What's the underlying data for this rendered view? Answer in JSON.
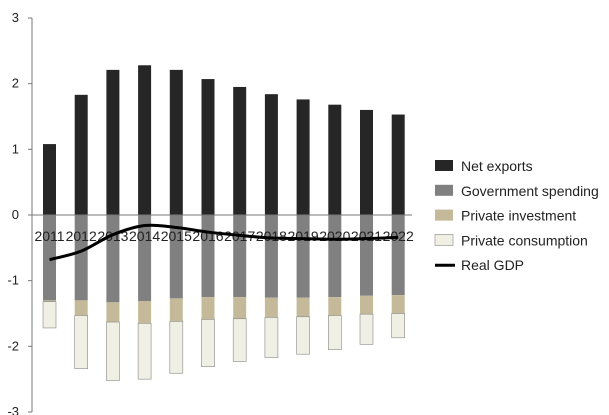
{
  "chart_data": {
    "type": "bar",
    "stacked": true,
    "categories": [
      "2011",
      "2012",
      "2013",
      "2014",
      "2015",
      "2016",
      "2017",
      "2018",
      "2019",
      "2020",
      "2021",
      "2022"
    ],
    "ylim": [
      -3,
      3
    ],
    "yticks": [
      -3,
      -2,
      -1,
      0,
      1,
      2,
      3
    ],
    "grid": false,
    "legend_position": "right",
    "series": [
      {
        "name": "Net exports",
        "kind": "bar",
        "color": "#262626",
        "values": [
          1.08,
          1.83,
          2.21,
          2.28,
          2.21,
          2.07,
          1.95,
          1.84,
          1.76,
          1.68,
          1.6,
          1.53
        ]
      },
      {
        "name": "Government spending",
        "kind": "bar",
        "color": "#808080",
        "values": [
          -1.3,
          -1.3,
          -1.33,
          -1.31,
          -1.27,
          -1.25,
          -1.25,
          -1.26,
          -1.26,
          -1.25,
          -1.23,
          -1.22
        ]
      },
      {
        "name": "Private investment",
        "kind": "bar",
        "color": "#c4b998",
        "values": [
          -0.02,
          -0.23,
          -0.3,
          -0.34,
          -0.35,
          -0.34,
          -0.33,
          -0.3,
          -0.29,
          -0.28,
          -0.28,
          -0.28
        ]
      },
      {
        "name": "Private consumption",
        "kind": "bar",
        "color": "#efefe4",
        "values": [
          -0.4,
          -0.81,
          -0.89,
          -0.85,
          -0.79,
          -0.72,
          -0.65,
          -0.61,
          -0.57,
          -0.52,
          -0.46,
          -0.37
        ]
      },
      {
        "name": "Real GDP",
        "kind": "line",
        "color": "#000000",
        "values": [
          -0.68,
          -0.55,
          -0.3,
          -0.16,
          -0.19,
          -0.26,
          -0.31,
          -0.35,
          -0.36,
          -0.37,
          -0.36,
          -0.34
        ]
      }
    ]
  }
}
